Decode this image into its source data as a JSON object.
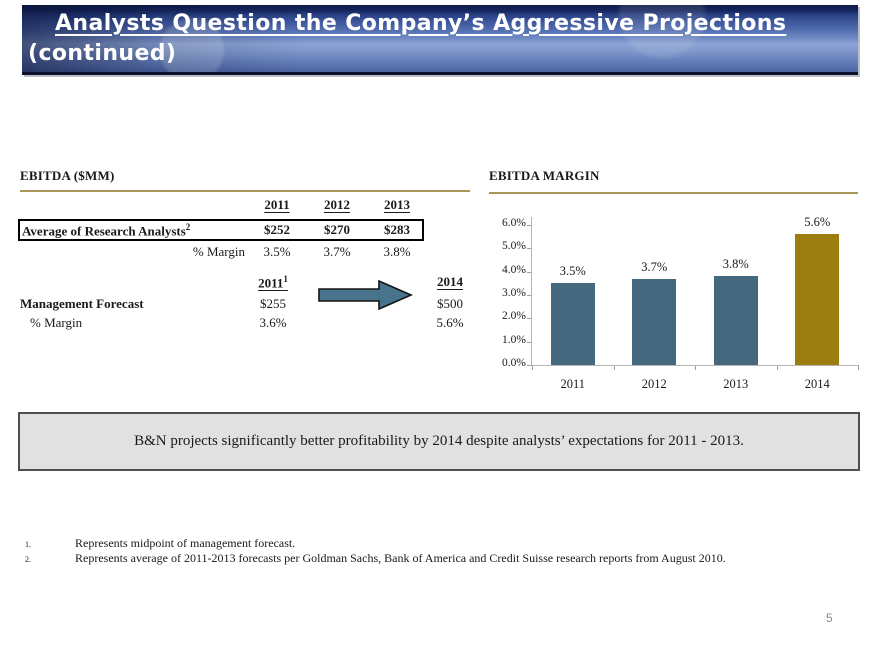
{
  "header": {
    "title_line1": "Analysts Question the Company’s Aggressive Projections",
    "title_line2": "(continued)"
  },
  "ebitda_table": {
    "section_title": "EBITDA ($MM)",
    "years": [
      "2011",
      "2012",
      "2013"
    ],
    "analyst_row": {
      "label": "Average of Research Analysts",
      "footnote_ref": "2",
      "values": [
        "$252",
        "$270",
        "$283"
      ]
    },
    "margin_row": {
      "label": "% Margin",
      "values": [
        "3.5%",
        "3.7%",
        "3.8%"
      ]
    }
  },
  "management_table": {
    "start_year": "2011",
    "start_year_footnote_ref": "1",
    "end_year": "2014",
    "forecast_row": {
      "label": "Management Forecast",
      "start_value": "$255",
      "end_value": "$500"
    },
    "margin_row": {
      "label": "% Margin",
      "start_value": "3.6%",
      "end_value": "5.6%"
    }
  },
  "chart_data": {
    "type": "bar",
    "title": "EBITDA MARGIN",
    "categories": [
      "2011",
      "2012",
      "2013",
      "2014"
    ],
    "values": [
      3.5,
      3.7,
      3.8,
      5.6
    ],
    "value_labels": [
      "3.5%",
      "3.7%",
      "3.8%",
      "5.6%"
    ],
    "xlabel": "",
    "ylabel": "",
    "ylim": [
      0,
      6
    ],
    "ytick_labels": [
      "0.0%",
      "1.0%",
      "2.0%",
      "3.0%",
      "4.0%",
      "5.0%",
      "6.0%"
    ],
    "grid": false,
    "legend": "none",
    "bar_colors": [
      "#44697e",
      "#44697e",
      "#44697e",
      "#9c7e10"
    ]
  },
  "callout": {
    "text": "B&N projects significantly better profitability by 2014 despite analysts’ expectations for 2011 - 2013."
  },
  "footnotes": [
    {
      "number": "1.",
      "text": "Represents midpoint of management forecast."
    },
    {
      "number": "2.",
      "text": "Represents average of 2011-2013 forecasts per Goldman Sachs, Bank of America and Credit Suisse research reports from August 2010."
    }
  ],
  "footer": {
    "page_number": "5"
  },
  "colors": {
    "title_bar_top": "#0f1a45",
    "title_bar_mid": "#5874b4",
    "title_bar_light": "#8ba3d4",
    "gold_rule": "#a8965a",
    "bar_blue": "#44697e",
    "bar_gold": "#9c7e10",
    "arrow_fill": "#47748c",
    "callout_bg": "#e1e1e1",
    "callout_border": "#4f4f4f",
    "axis_gray": "#b5b5b5",
    "text": "#1a1a1a",
    "page_number_gray": "#8c8c8c"
  }
}
